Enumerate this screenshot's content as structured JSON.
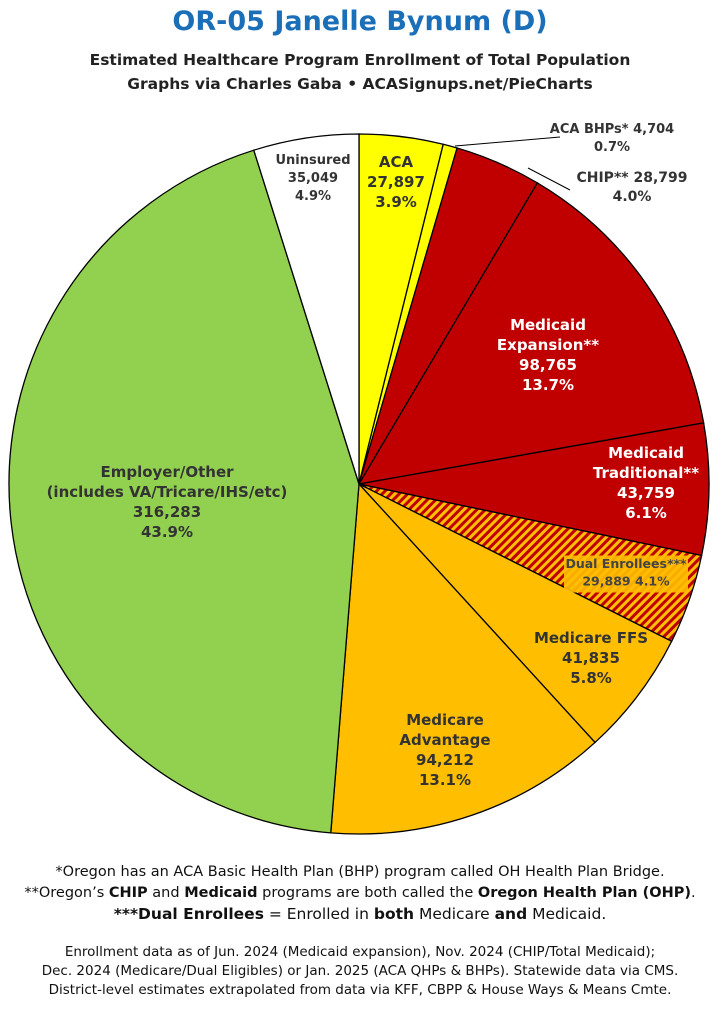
{
  "title": "OR-05 Janelle Bynum (D)",
  "subtitle_line1": "Estimated Healthcare Program Enrollment of Total Population",
  "subtitle_line2": "Graphs via Charles Gaba  •  ACASignups.net/PieCharts",
  "notes": {
    "line1_a": "*Oregon has an ACA ",
    "line1_b": "Basic Health Plan",
    "line1_c": " (BHP) program called ",
    "line1_d": "OH Health Plan Bridge",
    "line1_e": ".",
    "line2_a": "**Oregon’s ",
    "line2_b": "CHIP",
    "line2_c": " and ",
    "line2_d": "Medicaid",
    "line2_e": " programs are both called the ",
    "line2_f": "Oregon Health Plan (OHP)",
    "line2_g": ".",
    "line3_a": "***Dual Enrollees",
    "line3_b": " = Enrolled in ",
    "line3_c": "both",
    "line3_d": " Medicare ",
    "line3_e": "and",
    "line3_f": " Medicaid."
  },
  "footer": {
    "line1": "Enrollment data as of Jun. 2024 (Medicaid expansion), Nov. 2024 (CHIP/Total Medicaid);",
    "line2": "Dec. 2024 (Medicare/Dual Eligibles) or Jan. 2025 (ACA QHPs & BHPs). Statewide data via CMS.",
    "line3": "District-level estimates extrapolated from data via KFF, CBPP & House Ways & Means Cmte."
  },
  "chart_data": {
    "type": "pie",
    "start_angle": "12 o'clock, clockwise",
    "slices": [
      {
        "key": "aca",
        "label_lines": [
          "ACA"
        ],
        "value": 27897,
        "value_text": "27,897",
        "percent_text": "3.9%",
        "color": "#ffff00",
        "hatched": false
      },
      {
        "key": "aca_bhp",
        "label_lines": [
          "ACA BHPs* 4,704"
        ],
        "value": 4704,
        "value_text": "",
        "percent_text": "0.7%",
        "color": "#ffff00",
        "hatched": false
      },
      {
        "key": "chip",
        "label_lines": [
          "CHIP** 28,799"
        ],
        "value": 28799,
        "value_text": "",
        "percent_text": "4.0%",
        "color": "#c00000",
        "hatched": false
      },
      {
        "key": "medicaid_expansion",
        "label_lines": [
          "Medicaid",
          "Expansion**"
        ],
        "value": 98765,
        "value_text": "98,765",
        "percent_text": "13.7%",
        "color": "#c00000",
        "hatched": false
      },
      {
        "key": "medicaid_traditional",
        "label_lines": [
          "Medicaid",
          "Traditional**"
        ],
        "value": 43759,
        "value_text": "43,759",
        "percent_text": "6.1%",
        "color": "#c00000",
        "hatched": false
      },
      {
        "key": "dual",
        "label_lines": [
          "Dual Enrollees***"
        ],
        "value": 29889,
        "value_text": "29,889 4.1%",
        "percent_text": "",
        "color": "#ffbf00",
        "hatched": true,
        "hatch_color": "#c00000"
      },
      {
        "key": "medicare_ffs",
        "label_lines": [
          "Medicare FFS"
        ],
        "value": 41835,
        "value_text": "41,835",
        "percent_text": "5.8%",
        "color": "#ffbf00",
        "hatched": false
      },
      {
        "key": "medicare_advantage",
        "label_lines": [
          "Medicare",
          "Advantage"
        ],
        "value": 94212,
        "value_text": "94,212",
        "percent_text": "13.1%",
        "color": "#ffbf00",
        "hatched": false
      },
      {
        "key": "employer",
        "label_lines": [
          "Employer/Other",
          "(includes VA/Tricare/IHS/etc)"
        ],
        "value": 316283,
        "value_text": "316,283",
        "percent_text": "43.9%",
        "color": "#92d050",
        "hatched": false
      },
      {
        "key": "uninsured",
        "label_lines": [
          "Uninsured"
        ],
        "value": 35049,
        "value_text": "35,049",
        "percent_text": "4.9%",
        "color": "#ffffff",
        "hatched": false
      }
    ]
  }
}
